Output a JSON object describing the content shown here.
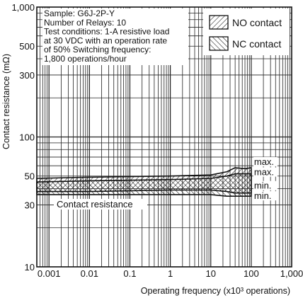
{
  "chart_data": {
    "type": "area",
    "title": "",
    "xlabel": "Operating frequency (x10³ operations)",
    "ylabel": "Contact resistance (mΩ)",
    "x_scale": "log",
    "y_scale": "log",
    "xlim": [
      0.0005,
      1000
    ],
    "ylim": [
      10,
      1000
    ],
    "grid": true,
    "x_ticks": [
      {
        "value": 0.001,
        "label": "0.001"
      },
      {
        "value": 0.01,
        "label": "0.01"
      },
      {
        "value": 0.1,
        "label": "0.1"
      },
      {
        "value": 1,
        "label": "1"
      },
      {
        "value": 10,
        "label": "10"
      },
      {
        "value": 100,
        "label": "100"
      },
      {
        "value": 1000,
        "label": "1,000"
      }
    ],
    "y_ticks": [
      {
        "value": 10,
        "label": "10"
      },
      {
        "value": 30,
        "label": "30"
      },
      {
        "value": 50,
        "label": "50"
      },
      {
        "value": 100,
        "label": "100"
      },
      {
        "value": 300,
        "label": "300"
      },
      {
        "value": 500,
        "label": "500"
      },
      {
        "value": 1000,
        "label": "1,000"
      }
    ],
    "annotation_lines": [
      "Sample: G6J-2P-Y",
      "Number of Relays: 10",
      "Test conditions: 1-A resistive load",
      "at 30 VDC with an operation rate",
      "of 50% Switching frequency:",
      "1,800 operations/hour"
    ],
    "band_label": "Contact resistance",
    "legend_position": "top-right",
    "series": [
      {
        "name": "NO contact",
        "hatch": "forward",
        "x": [
          0.0005,
          0.01,
          1,
          10,
          25,
          40,
          70,
          100
        ],
        "max": [
          48,
          49,
          50,
          51,
          54,
          58,
          57,
          58
        ],
        "min": [
          38,
          38,
          39,
          39,
          38,
          37,
          37,
          37
        ]
      },
      {
        "name": "NC contact",
        "hatch": "backward",
        "x": [
          0.0005,
          0.01,
          1,
          10,
          25,
          40,
          70,
          100
        ],
        "max": [
          45,
          46,
          47,
          48,
          50,
          52,
          52,
          52
        ],
        "min": [
          36,
          36,
          36,
          36,
          35,
          35,
          35,
          35
        ]
      }
    ],
    "bound_labels": [
      "max.",
      "max.",
      "min.",
      "min."
    ]
  }
}
